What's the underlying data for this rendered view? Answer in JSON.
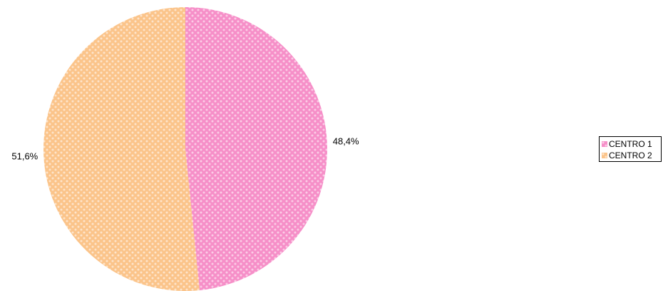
{
  "chart_data": {
    "type": "pie",
    "categories": [
      "CENTRO 1",
      "CENTRO 2"
    ],
    "values": [
      48.4,
      51.6
    ],
    "data_labels": [
      "48,4%",
      "51,6%"
    ],
    "colors": [
      "#f68fc8",
      "#fbc48a"
    ],
    "legend": {
      "placement": "right",
      "entries": [
        "CENTRO 1",
        "CENTRO 2"
      ]
    },
    "title": "",
    "start_angle_deg": 0,
    "direction": "clockwise"
  }
}
